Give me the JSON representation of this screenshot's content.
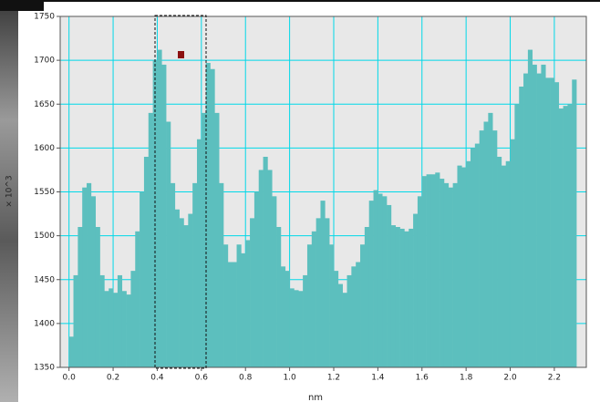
{
  "chart_data": {
    "type": "histogram",
    "x_label": "nm",
    "y_label": "× 10^3",
    "bins": [
      0,
      0.02,
      0.04,
      0.06,
      0.08,
      0.1,
      0.12,
      0.14,
      0.16,
      0.18,
      0.2,
      0.22,
      0.24,
      0.26,
      0.28,
      0.3,
      0.32,
      0.34,
      0.36,
      0.38,
      0.4,
      0.42,
      0.44,
      0.46,
      0.48,
      0.5,
      0.52,
      0.54,
      0.56,
      0.58,
      0.6,
      0.62,
      0.64,
      0.66,
      0.68,
      0.7,
      0.72,
      0.74,
      0.76,
      0.78,
      0.8,
      0.82,
      0.84,
      0.86,
      0.88,
      0.9,
      0.92,
      0.94,
      0.96,
      0.98,
      1,
      1.02,
      1.04,
      1.06,
      1.08,
      1.1,
      1.12,
      1.14,
      1.16,
      1.18,
      1.2,
      1.22,
      1.24,
      1.26,
      1.28,
      1.3,
      1.32,
      1.34,
      1.36,
      1.38,
      1.4,
      1.42,
      1.44,
      1.46,
      1.48,
      1.5,
      1.52,
      1.54,
      1.56,
      1.58,
      1.6,
      1.62,
      1.64,
      1.66,
      1.68,
      1.7,
      1.72,
      1.74,
      1.76,
      1.78,
      1.8,
      1.82,
      1.84,
      1.86,
      1.88,
      1.9,
      1.92,
      1.94,
      1.96,
      1.98,
      2,
      2.02,
      2.04,
      2.06,
      2.08,
      2.1,
      2.12,
      2.14,
      2.16,
      2.18,
      2.2,
      2.22,
      2.24,
      2.26,
      2.28,
      2.3
    ],
    "values": [
      1385,
      1455,
      1510,
      1555,
      1560,
      1545,
      1510,
      1455,
      1437,
      1440,
      1435,
      1455,
      1437,
      1433,
      1460,
      1505,
      1550,
      1590,
      1640,
      1700,
      1712,
      1695,
      1630,
      1560,
      1530,
      1520,
      1512,
      1525,
      1560,
      1610,
      1640,
      1697,
      1690,
      1640,
      1560,
      1490,
      1470,
      1470,
      1490,
      1480,
      1495,
      1520,
      1550,
      1575,
      1590,
      1575,
      1545,
      1510,
      1465,
      1460,
      1440,
      1438,
      1437,
      1455,
      1490,
      1505,
      1520,
      1540,
      1520,
      1490,
      1460,
      1445,
      1435,
      1455,
      1465,
      1470,
      1490,
      1510,
      1540,
      1552,
      1548,
      1545,
      1535,
      1512,
      1510,
      1508,
      1505,
      1508,
      1525,
      1545,
      1568,
      1570,
      1570,
      1572,
      1565,
      1560,
      1555,
      1560,
      1580,
      1578,
      1585,
      1600,
      1605,
      1620,
      1630,
      1640,
      1620,
      1590,
      1580,
      1585,
      1610,
      1650,
      1670,
      1685,
      1712,
      1695,
      1685,
      1695,
      1680,
      1680,
      1675,
      1645,
      1648,
      1650,
      1678
    ],
    "color": "#5cbfbe",
    "grid": true,
    "xlim": [
      -0.04,
      2.345
    ],
    "ylim": [
      1350,
      1750
    ],
    "xticks": [
      {
        "value": 0,
        "label": "0.0"
      },
      0.2,
      0.4,
      0.6,
      0.8,
      {
        "value": 1,
        "label": "1.0"
      },
      1.2,
      1.4,
      1.6,
      1.8,
      {
        "value": 2,
        "label": "2.0"
      },
      2.2
    ],
    "yticks": [
      1350,
      1400,
      1450,
      1500,
      1550,
      1600,
      1650,
      1700,
      1750
    ]
  }
}
